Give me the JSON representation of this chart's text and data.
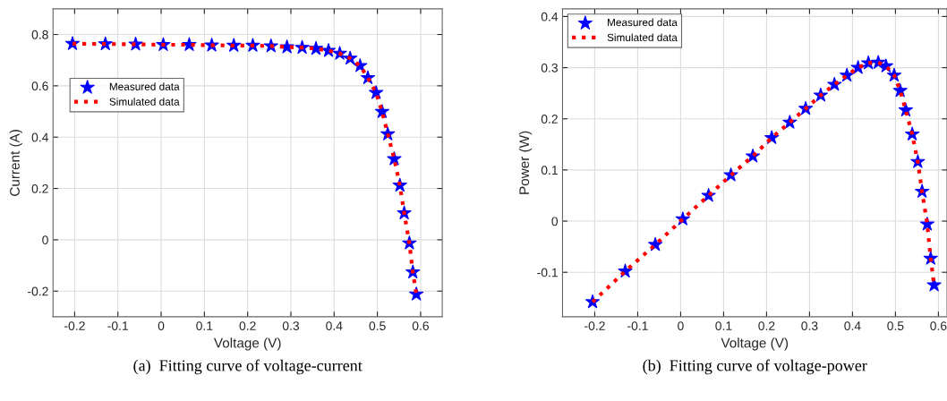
{
  "chart_data": [
    {
      "type": "scatter",
      "xlabel": "Voltage (V)",
      "ylabel": "Current (A)",
      "annotations": [
        "(a)  Fitting curve of voltage-current"
      ],
      "x": [
        -0.205,
        -0.129,
        -0.059,
        0.005,
        0.065,
        0.117,
        0.168,
        0.212,
        0.254,
        0.291,
        0.326,
        0.358,
        0.387,
        0.413,
        0.437,
        0.46,
        0.478,
        0.497,
        0.511,
        0.524,
        0.539,
        0.552,
        0.562,
        0.574,
        0.582,
        0.59
      ],
      "series": [
        {
          "name": "Measured data",
          "color": "#0000ff",
          "marker": "star",
          "values": [
            0.764,
            0.763,
            0.762,
            0.76,
            0.76,
            0.758,
            0.757,
            0.757,
            0.755,
            0.751,
            0.749,
            0.745,
            0.737,
            0.726,
            0.707,
            0.678,
            0.631,
            0.573,
            0.499,
            0.412,
            0.315,
            0.212,
            0.104,
            -0.013,
            -0.126,
            -0.212
          ]
        },
        {
          "name": "Simulated data",
          "type": "line",
          "color": "#ff0000",
          "line_style": "dotted",
          "values": [
            0.764,
            0.763,
            0.762,
            0.76,
            0.76,
            0.758,
            0.757,
            0.757,
            0.755,
            0.751,
            0.749,
            0.745,
            0.737,
            0.726,
            0.707,
            0.678,
            0.631,
            0.573,
            0.499,
            0.412,
            0.315,
            0.212,
            0.104,
            -0.013,
            -0.126,
            -0.212
          ]
        }
      ],
      "xlim": [
        -0.25,
        0.65
      ],
      "xticks": [
        -0.2,
        -0.1,
        0,
        0.1,
        0.2,
        0.3,
        0.4,
        0.5,
        0.6
      ],
      "ylim": [
        -0.3,
        0.9
      ],
      "yticks": [
        -0.2,
        0,
        0.2,
        0.4,
        0.6,
        0.8
      ],
      "grid": true,
      "legend": "center left"
    },
    {
      "type": "scatter",
      "xlabel": "Voltage (V)",
      "ylabel": "Power (W)",
      "annotations": [
        "(b)  Fitting curve of voltage-power"
      ],
      "x": [
        -0.205,
        -0.129,
        -0.059,
        0.005,
        0.065,
        0.117,
        0.168,
        0.212,
        0.254,
        0.291,
        0.326,
        0.358,
        0.387,
        0.413,
        0.437,
        0.46,
        0.478,
        0.497,
        0.511,
        0.524,
        0.539,
        0.552,
        0.562,
        0.574,
        0.582,
        0.59
      ],
      "series": [
        {
          "name": "Measured data",
          "color": "#0000ff",
          "marker": "star",
          "values": [
            -0.158,
            -0.098,
            -0.046,
            0.004,
            0.05,
            0.09,
            0.127,
            0.163,
            0.193,
            0.22,
            0.246,
            0.267,
            0.285,
            0.3,
            0.309,
            0.31,
            0.303,
            0.285,
            0.255,
            0.217,
            0.17,
            0.116,
            0.058,
            -0.006,
            -0.073,
            -0.125
          ]
        },
        {
          "name": "Simulated data",
          "type": "line",
          "color": "#ff0000",
          "line_style": "dotted",
          "values": [
            -0.158,
            -0.098,
            -0.046,
            0.004,
            0.05,
            0.09,
            0.127,
            0.163,
            0.193,
            0.22,
            0.246,
            0.267,
            0.285,
            0.3,
            0.309,
            0.31,
            0.303,
            0.285,
            0.255,
            0.217,
            0.17,
            0.116,
            0.058,
            -0.006,
            -0.073,
            -0.125
          ]
        }
      ],
      "xlim": [
        -0.275,
        0.62
      ],
      "xticks": [
        -0.2,
        -0.1,
        0,
        0.1,
        0.2,
        0.3,
        0.4,
        0.5,
        0.6
      ],
      "ylim": [
        -0.187,
        0.415
      ],
      "yticks": [
        -0.1,
        0,
        0.1,
        0.2,
        0.3,
        0.4
      ],
      "grid": true,
      "legend": "top left"
    }
  ]
}
